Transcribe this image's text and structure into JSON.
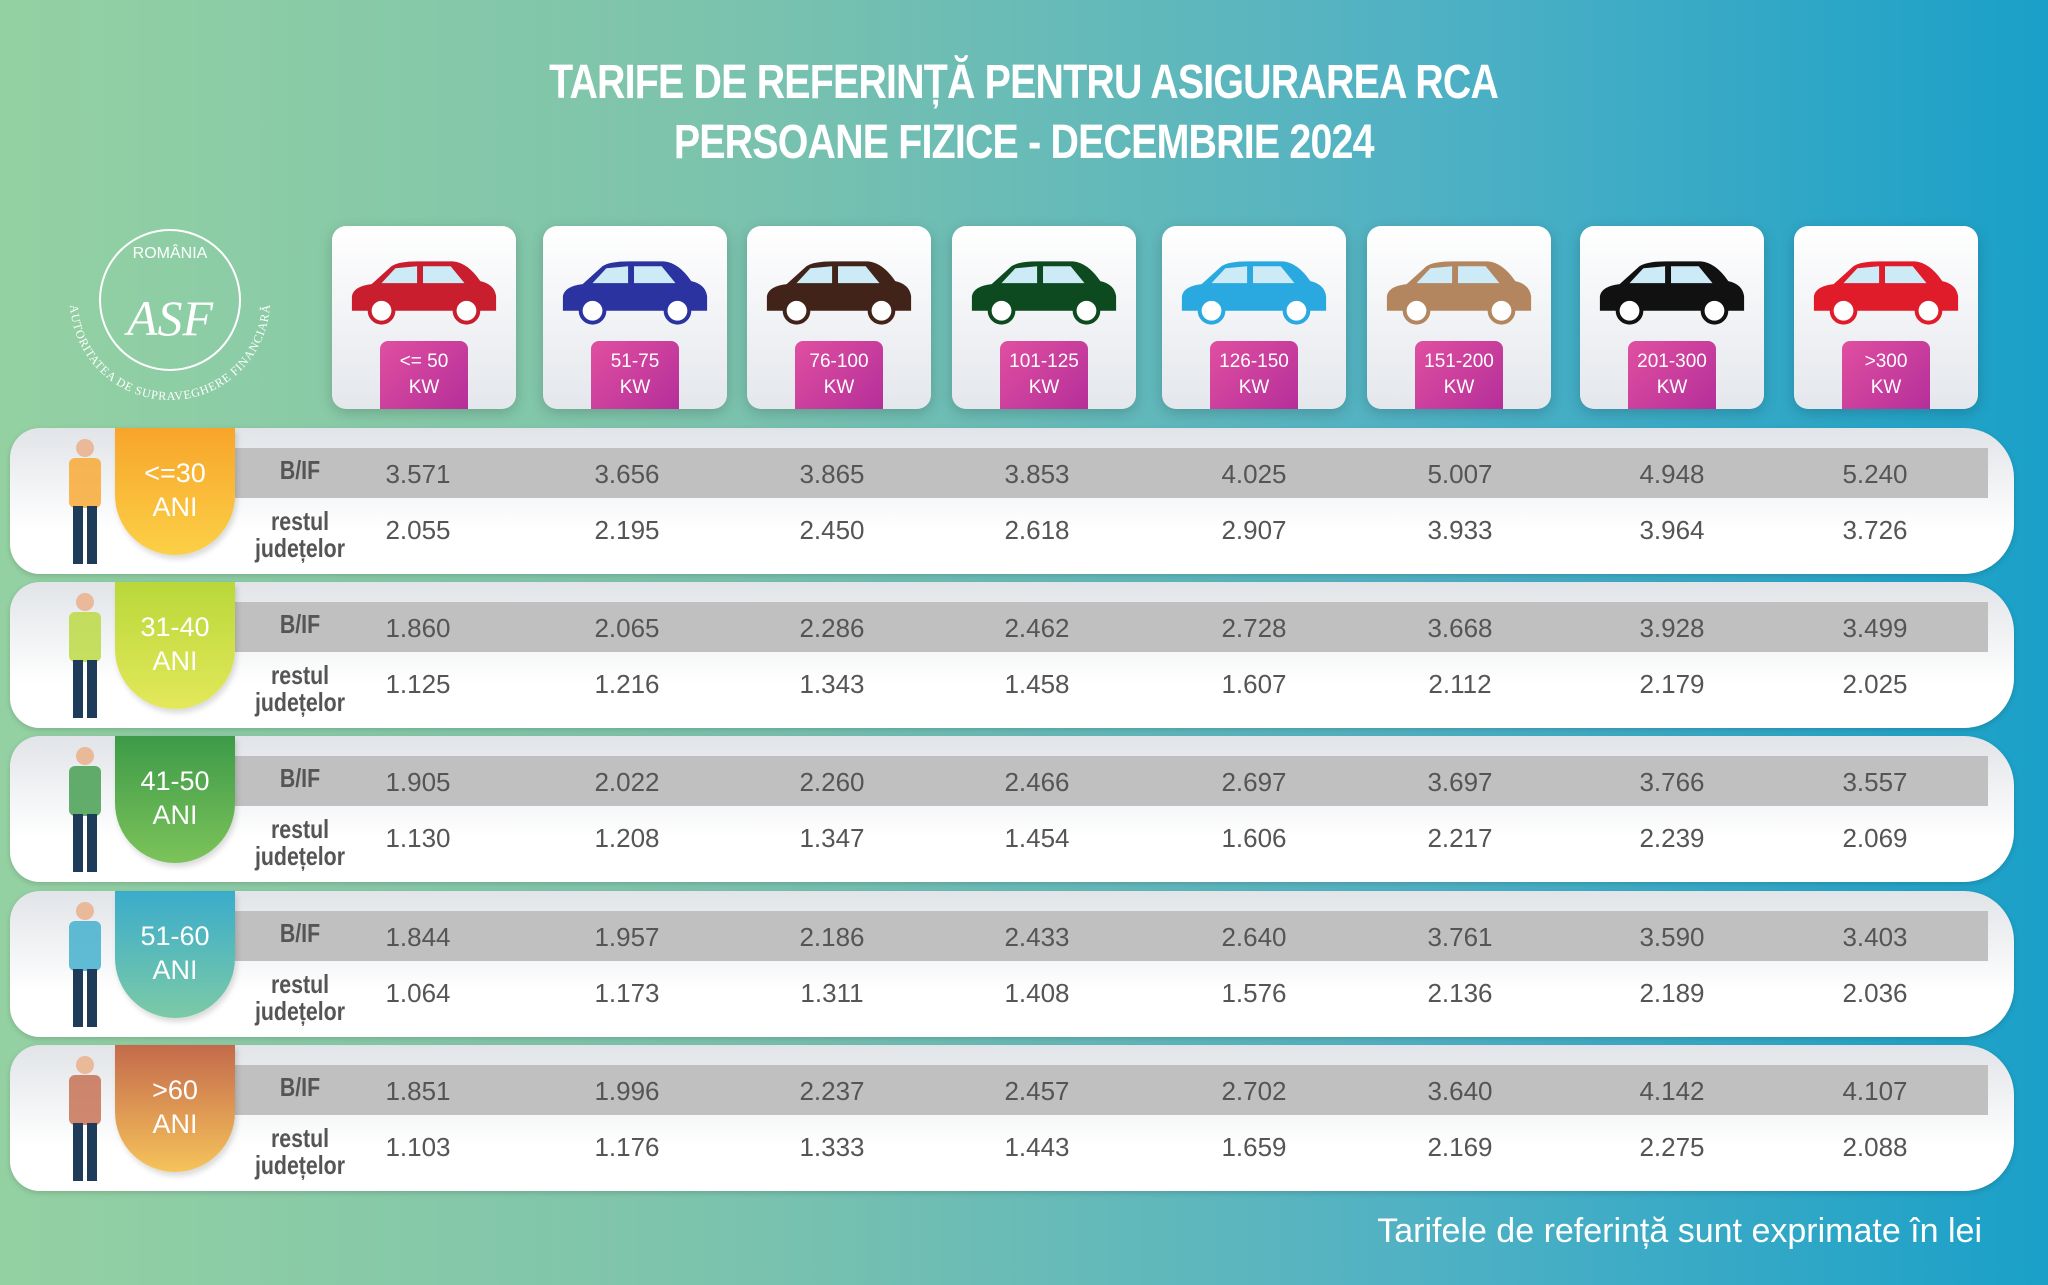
{
  "title": {
    "line1": "TARIFE DE REFERINȚĂ PENTRU ASIGURAREA RCA",
    "line2": "PERSOANE FIZICE - DECEMBRIE 2024"
  },
  "logo": {
    "country": "ROMÂNIA",
    "monogram": "ASF",
    "authority": "AUTORITATEA DE SUPRAVEGHERE FINANCIARĂ"
  },
  "power_classes": [
    {
      "range": "<= 50",
      "unit": "KW",
      "car_color": "#c81e2e",
      "car_icon": "hatchback-icon"
    },
    {
      "range": "51-75",
      "unit": "KW",
      "car_color": "#2b33a0",
      "car_icon": "hatchback-icon"
    },
    {
      "range": "76-100",
      "unit": "KW",
      "car_color": "#42231a",
      "car_icon": "sedan-icon"
    },
    {
      "range": "101-125",
      "unit": "KW",
      "car_color": "#0d4a1f",
      "car_icon": "van-icon"
    },
    {
      "range": "126-150",
      "unit": "KW",
      "car_color": "#2aa8e0",
      "car_icon": "sedan-icon"
    },
    {
      "range": "151-200",
      "unit": "KW",
      "car_color": "#b38660",
      "car_icon": "suv-icon"
    },
    {
      "range": "201-300",
      "unit": "KW",
      "car_color": "#111111",
      "car_icon": "convertible-icon"
    },
    {
      "range": ">300",
      "unit": "KW",
      "car_color": "#e01b2a",
      "car_icon": "sports-car-icon"
    }
  ],
  "row_labels": {
    "bif": "B/IF",
    "rest_1": "restul",
    "rest_2": "județelor"
  },
  "age_groups": [
    {
      "age": "<=30",
      "unit": "ANI",
      "color_top": "#f7a52b",
      "color_bottom": "#fcd046",
      "bif": [
        "3.571",
        "3.656",
        "3.865",
        "3.853",
        "4.025",
        "5.007",
        "4.948",
        "5.240"
      ],
      "rest": [
        "2.055",
        "2.195",
        "2.450",
        "2.618",
        "2.907",
        "3.933",
        "3.964",
        "3.726"
      ]
    },
    {
      "age": "31-40",
      "unit": "ANI",
      "color_top": "#b9d83a",
      "color_bottom": "#e3e85a",
      "bif": [
        "1.860",
        "2.065",
        "2.286",
        "2.462",
        "2.728",
        "3.668",
        "3.928",
        "3.499"
      ],
      "rest": [
        "1.125",
        "1.216",
        "1.343",
        "1.458",
        "1.607",
        "2.112",
        "2.179",
        "2.025"
      ]
    },
    {
      "age": "41-50",
      "unit": "ANI",
      "color_top": "#3d9a48",
      "color_bottom": "#7cc35a",
      "bif": [
        "1.905",
        "2.022",
        "2.260",
        "2.466",
        "2.697",
        "3.697",
        "3.766",
        "3.557"
      ],
      "rest": [
        "1.130",
        "1.208",
        "1.347",
        "1.454",
        "1.606",
        "2.217",
        "2.239",
        "2.069"
      ]
    },
    {
      "age": "51-60",
      "unit": "ANI",
      "color_top": "#3aaccb",
      "color_bottom": "#7ccaa6",
      "bif": [
        "1.844",
        "1.957",
        "2.186",
        "2.433",
        "2.640",
        "3.761",
        "3.590",
        "3.403"
      ],
      "rest": [
        "1.064",
        "1.173",
        "1.311",
        "1.408",
        "1.576",
        "2.136",
        "2.189",
        "2.036"
      ]
    },
    {
      "age": ">60",
      "unit": "ANI",
      "color_top": "#c46a4c",
      "color_bottom": "#f6c35a",
      "bif": [
        "1.851",
        "1.996",
        "2.237",
        "2.457",
        "2.702",
        "3.640",
        "4.142",
        "4.107"
      ],
      "rest": [
        "1.103",
        "1.176",
        "1.333",
        "1.443",
        "1.659",
        "2.169",
        "2.275",
        "2.088"
      ]
    }
  ],
  "footer": "Tarifele de referință sunt exprimate în lei"
}
